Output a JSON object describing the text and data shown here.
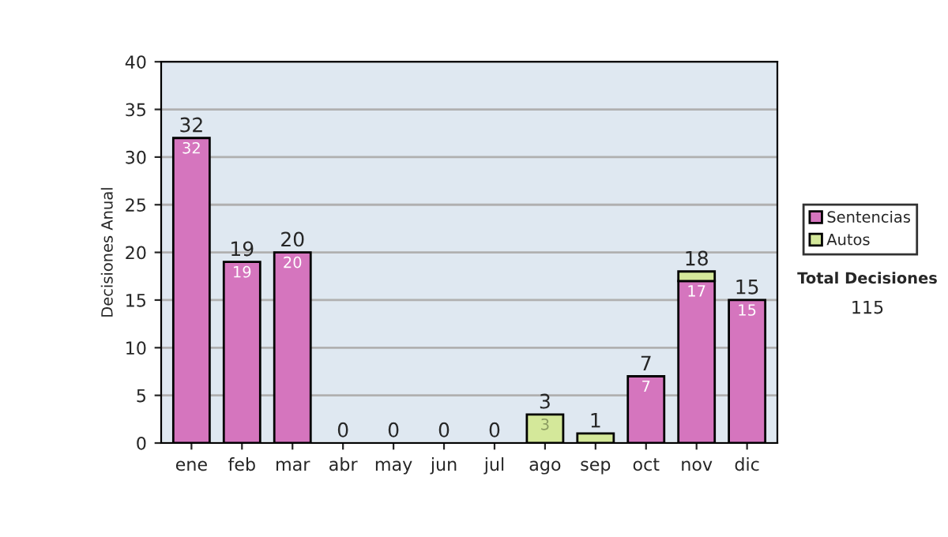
{
  "chart_data": {
    "type": "bar",
    "stacked": true,
    "ylabel": "Decisiones Anual",
    "categories": [
      "ene",
      "feb",
      "mar",
      "abr",
      "may",
      "jun",
      "jul",
      "ago",
      "sep",
      "oct",
      "nov",
      "dic"
    ],
    "series": [
      {
        "name": "Sentencias",
        "color": "#d575be",
        "values": [
          32,
          19,
          20,
          0,
          0,
          0,
          0,
          0,
          0,
          7,
          17,
          15
        ],
        "value_labels": [
          "32",
          "19",
          "20",
          null,
          null,
          null,
          null,
          null,
          null,
          "7",
          "17",
          "15"
        ]
      },
      {
        "name": "Autos",
        "color": "#d4e89a",
        "values": [
          0,
          0,
          0,
          0,
          0,
          0,
          0,
          3,
          1,
          0,
          1,
          0
        ],
        "value_labels": [
          null,
          null,
          null,
          null,
          null,
          null,
          null,
          "3",
          null,
          null,
          null,
          null
        ]
      }
    ],
    "totals": [
      "32",
      "19",
      "20",
      "0",
      "0",
      "0",
      "0",
      "3",
      "1",
      "7",
      "18",
      "15"
    ],
    "ylim": [
      0,
      40
    ],
    "yticks": [
      0,
      5,
      10,
      15,
      20,
      25,
      30,
      35,
      40
    ],
    "grid": "y",
    "legend": "right",
    "annotations": [
      "Total Decisiones",
      "115"
    ]
  }
}
